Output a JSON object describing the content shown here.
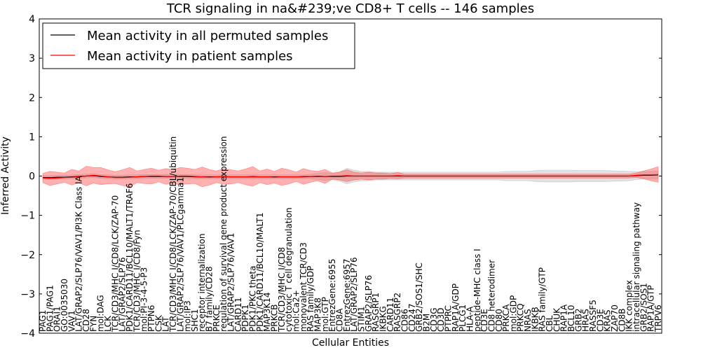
{
  "chart_data": {
    "type": "line",
    "title": "TCR signaling in na&#239;ve CD8+ T cells -- 146 samples",
    "xlabel": "Cellular Entities",
    "ylabel": "Inferred Activity",
    "ylim": [
      -4,
      4
    ],
    "yticks": [
      "4",
      "3",
      "2",
      "1",
      "0",
      "−1",
      "−2",
      "−3",
      "−4"
    ],
    "grid": false,
    "legend_position": "top-left",
    "entities": [
      "PAG1",
      "PAG1/PAG1",
      "ORAI1",
      "GO:0035030",
      "VAV1",
      "LAT/GRAP2/SLP76/VAV1/PI3K Class IA",
      "CD28",
      "FYN",
      "mol:DAG",
      "LCK",
      "TCR/CD3/MHC I/CD8/LCK/ZAP-70",
      "LAT/GRAP2/SLP76",
      "PDK1/CARD11/BCL10/MALT1/TRAF6",
      "TCR/CD3/MHC I/CD8/Fyn",
      "mol:PI-3-4-5-P3",
      "PTPN6",
      "CSK",
      "LAT",
      "TCR/CD3/MHC I/CD8/LCK/ZAP-70/CBL/ubiquitin",
      "LAT/GRAP2/SLP76/VAV1/PLCgamma1",
      "mol:IP3",
      "SHC1",
      "receptor internalization",
      "B7 family/CD28",
      "PRKCE",
      "regulation of survival gene product expression",
      "LAT/GRAP2/SLP76/VAV1",
      "CARD11",
      "PDPK1",
      "PDK1/PKC theta",
      "PDK1/CARD11/BCL10/MALT1",
      "MAP3K14",
      "PRKCB",
      "TCR/CD3/MHC I/CD8",
      "cytotoxic T cell degranulation",
      "mol:Ca2+",
      "monovalent TCR/CD3",
      "RAS family/GDP",
      "MAP3K8",
      "mol:GTP",
      "EntrezGene:6955",
      "CD8A",
      "EntrezGene:6957",
      "LAT/GRAP2/SLP76",
      "STIM1",
      "GRAP2/SLP76",
      "RASGRP1",
      "IKBKG",
      "CARD11",
      "RASGRP2",
      "CD86",
      "CD247",
      "GRB2/SOS1/SHC",
      "B2M",
      "CD3G",
      "CD3D",
      "PTPRC",
      "RAP1A/GDP",
      "PLCG1",
      "HLA-A",
      "peptide-MHC class I",
      "CD3E",
      "CD8 heterodimer",
      "CD80",
      "PRKCA",
      "mol:GDP",
      "PRKCQ",
      "NRAS",
      "IKBKB",
      "RAS family/GTP",
      "CBL",
      "CHUK",
      "RAP1A",
      "BCL10",
      "GRB2",
      "HRAS",
      "RASSF5",
      "CD3E",
      "KRAS",
      "ZAP70",
      "CD8B",
      "IKK complex",
      "intracellular signaling pathway",
      "GRB2/SOS1",
      "RAP1A/GTP",
      "TRPV6"
    ],
    "series": [
      {
        "name": "Mean activity in all permuted samples",
        "color": "#000000",
        "values": [
          -0.04,
          -0.04,
          -0.03,
          -0.03,
          -0.02,
          -0.01,
          0.0,
          0.01,
          -0.01,
          -0.02,
          -0.03,
          -0.03,
          -0.02,
          -0.02,
          -0.01,
          -0.01,
          -0.01,
          -0.01,
          -0.01,
          -0.01,
          -0.01,
          -0.02,
          -0.02,
          -0.02,
          -0.02,
          -0.02,
          -0.02,
          -0.02,
          -0.02,
          -0.02,
          -0.02,
          -0.02,
          -0.02,
          -0.02,
          -0.02,
          -0.02,
          -0.02,
          -0.01,
          -0.01,
          -0.01,
          -0.01,
          -0.01,
          0.0,
          0.0,
          0.0,
          0.0,
          0.0,
          0.0,
          0.0,
          0.0,
          0.0,
          0.0,
          0.0,
          0.0,
          0.0,
          0.0,
          0.0,
          0.0,
          0.0,
          0.0,
          0.0,
          0.0,
          0.0,
          0.0,
          0.0,
          0.0,
          0.0,
          0.0,
          0.0,
          0.0,
          0.0,
          0.0,
          0.0,
          0.0,
          0.0,
          0.0,
          0.0,
          0.0,
          0.0,
          0.0,
          0.0,
          0.0,
          0.01,
          0.02,
          0.02,
          0.03
        ],
        "band": [
          0.05,
          0.05,
          0.05,
          0.05,
          0.05,
          0.05,
          0.05,
          0.05,
          0.05,
          0.05,
          0.05,
          0.05,
          0.05,
          0.05,
          0.05,
          0.05,
          0.05,
          0.05,
          0.05,
          0.05,
          0.05,
          0.05,
          0.05,
          0.05,
          0.05,
          0.05,
          0.05,
          0.05,
          0.05,
          0.05,
          0.05,
          0.05,
          0.05,
          0.05,
          0.05,
          0.05,
          0.05,
          0.06,
          0.08,
          0.1,
          0.08,
          0.12,
          0.2,
          0.15,
          0.12,
          0.12,
          0.1,
          0.1,
          0.1,
          0.1,
          0.1,
          0.1,
          0.1,
          0.1,
          0.1,
          0.1,
          0.1,
          0.1,
          0.1,
          0.1,
          0.1,
          0.1,
          0.1,
          0.1,
          0.12,
          0.12,
          0.12,
          0.12,
          0.14,
          0.15,
          0.15,
          0.15,
          0.15,
          0.15,
          0.14,
          0.14,
          0.14,
          0.14,
          0.14,
          0.13,
          0.13,
          0.12,
          0.1,
          0.1,
          0.1,
          0.1
        ]
      },
      {
        "name": "Mean activity in patient samples",
        "color": "#ff0000",
        "values": [
          -0.05,
          -0.06,
          -0.05,
          -0.04,
          -0.03,
          -0.02,
          0.0,
          0.02,
          0.0,
          -0.02,
          -0.04,
          -0.04,
          -0.03,
          -0.02,
          -0.01,
          0.0,
          0.0,
          -0.01,
          -0.01,
          0.0,
          0.0,
          -0.01,
          -0.02,
          -0.03,
          -0.02,
          -0.01,
          -0.02,
          -0.02,
          -0.02,
          -0.01,
          -0.02,
          -0.02,
          -0.03,
          -0.02,
          -0.02,
          -0.02,
          -0.01,
          -0.01,
          0.0,
          -0.01,
          0.0,
          0.0,
          0.01,
          0.0,
          0.0,
          0.0,
          0.0,
          0.0,
          0.0,
          0.01,
          0.0,
          0.0,
          0.0,
          0.0,
          0.0,
          0.0,
          0.0,
          0.0,
          0.0,
          0.0,
          0.0,
          0.0,
          0.0,
          0.0,
          0.0,
          0.0,
          0.0,
          0.0,
          0.0,
          0.0,
          0.0,
          0.0,
          0.0,
          0.0,
          0.0,
          0.0,
          0.0,
          0.0,
          0.0,
          0.0,
          0.0,
          0.0,
          0.02,
          0.03,
          0.03,
          0.04
        ],
        "band": [
          0.12,
          0.18,
          0.15,
          0.12,
          0.2,
          0.15,
          0.25,
          0.2,
          0.22,
          0.18,
          0.15,
          0.2,
          0.25,
          0.15,
          0.18,
          0.2,
          0.15,
          0.2,
          0.18,
          0.22,
          0.2,
          0.18,
          0.25,
          0.2,
          0.15,
          0.2,
          0.18,
          0.15,
          0.2,
          0.25,
          0.15,
          0.2,
          0.15,
          0.22,
          0.18,
          0.12,
          0.2,
          0.15,
          0.12,
          0.18,
          0.08,
          0.1,
          0.15,
          0.1,
          0.08,
          0.1,
          0.08,
          0.08,
          0.06,
          0.08,
          0.05,
          0.05,
          0.05,
          0.05,
          0.05,
          0.05,
          0.05,
          0.05,
          0.05,
          0.05,
          0.05,
          0.05,
          0.05,
          0.05,
          0.05,
          0.05,
          0.05,
          0.05,
          0.05,
          0.05,
          0.05,
          0.05,
          0.05,
          0.05,
          0.05,
          0.05,
          0.05,
          0.05,
          0.05,
          0.05,
          0.05,
          0.05,
          0.06,
          0.1,
          0.15,
          0.2
        ]
      }
    ]
  }
}
